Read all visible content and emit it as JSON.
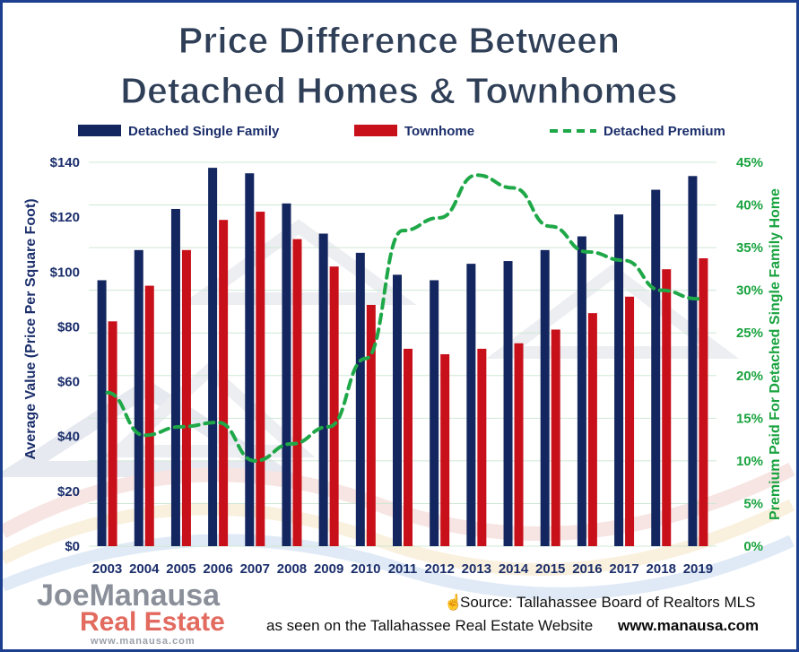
{
  "title": {
    "line1": "Price Difference Between",
    "line2": "Detached Homes & Townhomes"
  },
  "legend": {
    "detached": "Detached Single Family",
    "townhome": "Townhome",
    "premium": "Detached Premium"
  },
  "source": {
    "icon": "hand-pointer-icon",
    "line1": "Source: Tallahassee Board of Realtors MLS",
    "line2": "as seen on the Tallahassee Real Estate Website",
    "url": "www.manausa.com"
  },
  "logo": {
    "brand_a": "Joe",
    "brand_b": "Manausa",
    "line2": "Real Estate",
    "web": "www.manausa.com"
  },
  "colors": {
    "detached": "#14265f",
    "townhome": "#c8101a",
    "premium": "#1fa848",
    "title": "#2f3f57",
    "left_axis_text": "#1b2e6b",
    "right_axis_text": "#19a33f",
    "frame": "#1d3f8f"
  },
  "chart_data": {
    "type": "bar",
    "xlabel": "",
    "categories": [
      "2003",
      "2004",
      "2005",
      "2006",
      "2007",
      "2008",
      "2009",
      "2010",
      "2011",
      "2012",
      "2013",
      "2014",
      "2015",
      "2016",
      "2017",
      "2018",
      "2019"
    ],
    "series": [
      {
        "name": "Detached Single Family",
        "axis": "left",
        "type": "bar",
        "values": [
          97,
          108,
          123,
          138,
          136,
          125,
          114,
          107,
          99,
          97,
          103,
          104,
          108,
          113,
          121,
          130,
          135
        ]
      },
      {
        "name": "Townhome",
        "axis": "left",
        "type": "bar",
        "values": [
          82,
          95,
          108,
          119,
          122,
          112,
          102,
          88,
          72,
          70,
          72,
          74,
          79,
          85,
          91,
          101,
          105
        ]
      },
      {
        "name": "Detached Premium",
        "axis": "right",
        "type": "line",
        "style": "dashed",
        "values": [
          18,
          13,
          14,
          14.5,
          10,
          12,
          14,
          22,
          37,
          38.5,
          43.5,
          42,
          37.5,
          34.5,
          33.5,
          30,
          29
        ]
      }
    ],
    "ylabel": "Average Value (Price Per Square Foot)",
    "ylim": [
      0,
      140
    ],
    "yticks": [
      "$0",
      "$20",
      "$40",
      "$60",
      "$80",
      "$100",
      "$120",
      "$140"
    ],
    "y2label": "Premium Paid For Detached Single Family Home",
    "y2lim": [
      0,
      45
    ],
    "y2ticks": [
      "0%",
      "5%",
      "10%",
      "15%",
      "20%",
      "25%",
      "30%",
      "35%",
      "40%",
      "45%"
    ],
    "grid": true,
    "legend_position": "top"
  }
}
